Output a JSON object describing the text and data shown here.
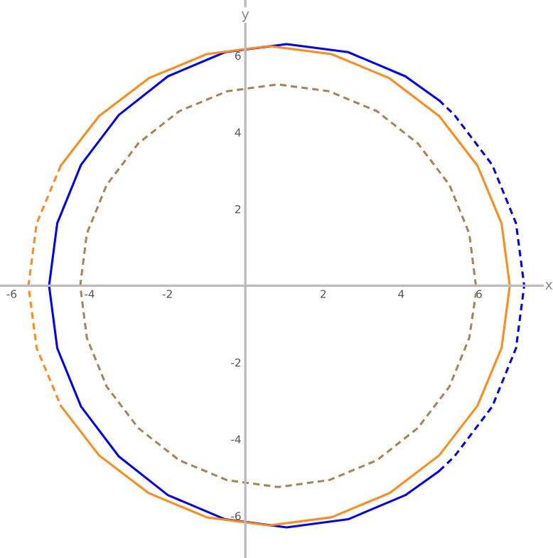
{
  "chart_data": {
    "type": "line",
    "xlabel": "x",
    "ylabel": "y",
    "xlim": [
      -6.3,
      7.9
    ],
    "ylim": [
      -7.1,
      7.45
    ],
    "xticks": [
      -6,
      -4,
      -2,
      2,
      4,
      6
    ],
    "yticks": [
      -6,
      -4,
      -2,
      2,
      4,
      6
    ],
    "grid": false,
    "marker": "none",
    "series": [
      {
        "color": "#0000ff",
        "line_style": "solid",
        "x": [
          4.98,
          4.11,
          2.64,
          1.06,
          -0.52,
          -1.99,
          -3.25,
          -4.22,
          -4.83,
          -5.04,
          -4.83,
          -4.22,
          -3.25,
          -1.99,
          -0.52,
          1.06,
          2.64,
          4.11,
          4.98
        ],
        "values": [
          4.83,
          5.46,
          6.09,
          6.3,
          6.09,
          5.46,
          4.45,
          3.15,
          1.63,
          0,
          -1.63,
          -3.15,
          -4.45,
          -5.46,
          -6.09,
          -6.3,
          -6.09,
          -5.46,
          -4.83
        ]
      },
      {
        "color": "#0000ff",
        "line_style": "dashed",
        "x": [
          4.98,
          5.37,
          6.34,
          6.95,
          7.16,
          6.95,
          6.34,
          5.37,
          4.98
        ],
        "values": [
          -4.83,
          -4.45,
          -3.15,
          -1.63,
          0,
          1.63,
          3.15,
          4.45,
          4.83
        ]
      },
      {
        "color": "#ff8c1a",
        "line_style": "solid",
        "x": [
          -4.74,
          -3.76,
          -2.48,
          -0.99,
          0.61,
          2.21,
          3.7,
          4.98,
          5.96,
          6.58,
          6.79,
          6.58,
          5.96,
          4.98,
          3.7,
          2.21,
          0.61,
          -0.99,
          -2.48,
          -3.76,
          -4.74
        ],
        "values": [
          -3.13,
          -4.42,
          -5.41,
          -6.04,
          -6.25,
          -6.04,
          -5.41,
          -4.42,
          -3.13,
          -1.62,
          0,
          1.62,
          3.13,
          4.42,
          5.41,
          6.04,
          6.25,
          6.04,
          5.41,
          4.42,
          3.13
        ]
      },
      {
        "color": "#ff8c1a",
        "line_style": "dashed",
        "x": [
          -4.74,
          -5.36,
          -5.57,
          -5.36,
          -4.74
        ],
        "values": [
          3.13,
          1.62,
          0,
          -1.62,
          -3.13
        ]
      },
      {
        "color": "#a8845a",
        "line_style": "dashed",
        "x": [
          5.92,
          5.75,
          5.24,
          4.43,
          3.38,
          2.15,
          0.84,
          -0.47,
          -1.7,
          -2.75,
          -3.56,
          -4.07,
          -4.24,
          -4.07,
          -3.56,
          -2.75,
          -1.7,
          -0.47,
          0.84,
          2.15,
          3.38,
          4.43,
          5.24,
          5.75,
          5.92
        ],
        "values": [
          0,
          1.36,
          2.63,
          3.71,
          4.55,
          5.07,
          5.25,
          5.07,
          4.55,
          3.71,
          2.63,
          1.36,
          0,
          -1.36,
          -2.63,
          -3.71,
          -4.55,
          -5.07,
          -5.25,
          -5.07,
          -4.55,
          -3.71,
          -2.63,
          -1.36,
          -0.2
        ]
      }
    ]
  }
}
